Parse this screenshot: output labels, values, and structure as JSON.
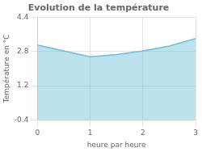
{
  "chart_data": {
    "type": "area",
    "title": "Evolution de la température",
    "xlabel": "heure par heure",
    "ylabel": "Température en °C",
    "x": [
      0,
      0.5,
      1.0,
      1.15,
      1.5,
      2.0,
      2.5,
      3.0
    ],
    "values": [
      3.1,
      2.82,
      2.55,
      2.58,
      2.65,
      2.82,
      3.05,
      3.4
    ],
    "color": "#6bbfd8",
    "xlim": [
      0,
      3
    ],
    "xticks": [
      0,
      1,
      2,
      3
    ],
    "ylim": [
      -0.4,
      4.4
    ],
    "yticks": [
      -0.4,
      1.2,
      2.8,
      4.4
    ],
    "grid": true
  }
}
